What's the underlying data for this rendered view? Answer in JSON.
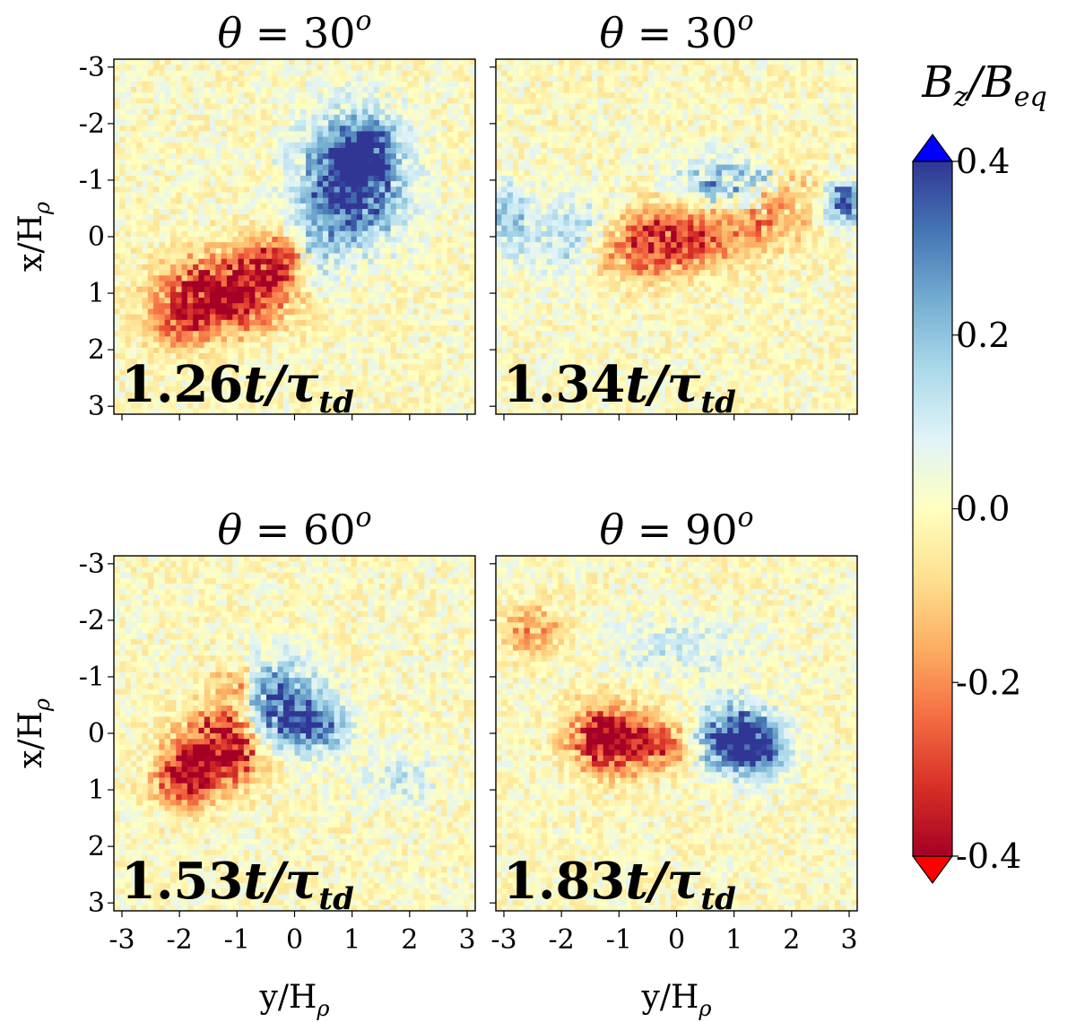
{
  "chart_data": {
    "type": "heatmap",
    "quantity": "B_z/B_eq",
    "colorbar": {
      "title_main": "B",
      "title_sub1": "z",
      "title_mid": "/B",
      "title_sub2": "eq",
      "colormap": "RdYlBu",
      "range": [
        -0.4,
        0.4
      ],
      "extend": "both",
      "ticks": [
        {
          "value": 0.4,
          "label": "0.4"
        },
        {
          "value": 0.2,
          "label": "0.2"
        },
        {
          "value": 0.0,
          "label": "0.0"
        },
        {
          "value": -0.2,
          "label": "-0.2"
        },
        {
          "value": -0.4,
          "label": "-0.4"
        }
      ],
      "colors": [
        "#a50026",
        "#d73027",
        "#f46d43",
        "#fdae61",
        "#fee090",
        "#ffffbf",
        "#e0f3f8",
        "#abd9e9",
        "#74add1",
        "#4575b4",
        "#313695"
      ],
      "extend_low_color": "#ff0000",
      "extend_high_color": "#0000ff"
    },
    "axes": {
      "x_label_main": "y/H",
      "x_label_sub": "ρ",
      "y_label_main": "x/H",
      "y_label_sub": "ρ",
      "x_range": [
        -3.14,
        3.14
      ],
      "y_range": [
        -3.14,
        3.14
      ],
      "y_inverted": true,
      "ticks": [
        -3,
        -2,
        -1,
        0,
        1,
        2,
        3
      ],
      "tick_labels": [
        "-3",
        "-2",
        "-1",
        "0",
        "1",
        "2",
        "3"
      ]
    },
    "panels": [
      {
        "title_lhs": "θ = ",
        "angle": "30",
        "title_sup": "o",
        "time_value": "1.26",
        "time_label": "t/τ",
        "time_sub": "td",
        "structures": [
          {
            "y": 1.0,
            "x": -1.0,
            "sy": 0.6,
            "sx": 0.75,
            "value": 0.45
          },
          {
            "y": 1.2,
            "x": -1.5,
            "sy": 0.3,
            "sx": 0.3,
            "value": 0.3
          },
          {
            "y": -1.2,
            "x": 1.0,
            "sy": 0.75,
            "sx": 0.45,
            "value": -0.45
          },
          {
            "y": -0.3,
            "x": 0.4,
            "sy": 0.4,
            "sx": 0.3,
            "value": -0.3
          },
          {
            "y": -2.0,
            "x": 1.6,
            "sy": 0.4,
            "sx": 0.3,
            "value": -0.2
          },
          {
            "y": 0.3,
            "x": 0.3,
            "sy": 0.3,
            "sx": 0.5,
            "value": 0.15
          }
        ]
      },
      {
        "title_lhs": "θ = ",
        "angle": "30",
        "title_sup": "o",
        "time_value": "1.34",
        "time_label": "t/τ",
        "time_sub": "td",
        "structures": [
          {
            "y": 1.0,
            "x": -0.9,
            "sy": 0.6,
            "sx": 0.35,
            "value": 0.35
          },
          {
            "y": 2.9,
            "x": -0.6,
            "sy": 0.2,
            "sx": 0.25,
            "value": 0.4
          },
          {
            "y": -2.9,
            "x": -0.3,
            "sy": 0.2,
            "sx": 0.4,
            "value": 0.2
          },
          {
            "y": 0.0,
            "x": 0.0,
            "sy": 0.7,
            "sx": 0.4,
            "value": -0.3
          },
          {
            "y": 1.5,
            "x": -0.6,
            "sy": 0.6,
            "sx": 0.5,
            "value": -0.25
          },
          {
            "y": -0.8,
            "x": 0.3,
            "sy": 0.6,
            "sx": 0.4,
            "value": -0.15
          },
          {
            "y": -1.8,
            "x": 0.0,
            "sy": 0.6,
            "sx": 0.5,
            "value": 0.15
          }
        ]
      },
      {
        "title_lhs": "θ = ",
        "angle": "60",
        "title_sup": "o",
        "time_value": "1.53",
        "time_label": "t/τ",
        "time_sub": "td",
        "structures": [
          {
            "y": -0.3,
            "x": -0.5,
            "sy": 0.5,
            "sx": 0.5,
            "value": 0.4
          },
          {
            "y": 0.4,
            "x": -0.1,
            "sy": 0.4,
            "sx": 0.3,
            "value": 0.25
          },
          {
            "y": -1.2,
            "x": 0.2,
            "sy": 0.5,
            "sx": 0.45,
            "value": -0.45
          },
          {
            "y": -1.9,
            "x": 0.8,
            "sy": 0.35,
            "sx": 0.35,
            "value": -0.4
          },
          {
            "y": -1.0,
            "x": -0.8,
            "sy": 0.3,
            "sx": 0.3,
            "value": -0.2
          },
          {
            "y": 1.8,
            "x": 0.8,
            "sy": 0.5,
            "sx": 0.3,
            "value": 0.1
          }
        ]
      },
      {
        "title_lhs": "θ = ",
        "angle": "90",
        "title_sup": "o",
        "time_value": "1.83",
        "time_label": "t/τ",
        "time_sub": "td",
        "structures": [
          {
            "y": 1.0,
            "x": 0.1,
            "sy": 0.45,
            "sx": 0.4,
            "value": 0.45
          },
          {
            "y": 1.5,
            "x": 0.3,
            "sy": 0.3,
            "sx": 0.3,
            "value": 0.25
          },
          {
            "y": -1.2,
            "x": 0.1,
            "sy": 0.45,
            "sx": 0.4,
            "value": -0.45
          },
          {
            "y": -0.3,
            "x": 0.2,
            "sy": 0.4,
            "sx": 0.3,
            "value": -0.25
          },
          {
            "y": -2.5,
            "x": -1.8,
            "sy": 0.35,
            "sx": 0.3,
            "value": -0.2
          },
          {
            "y": 0.0,
            "x": -1.5,
            "sy": 0.8,
            "sx": 0.4,
            "value": 0.1
          }
        ]
      }
    ]
  }
}
